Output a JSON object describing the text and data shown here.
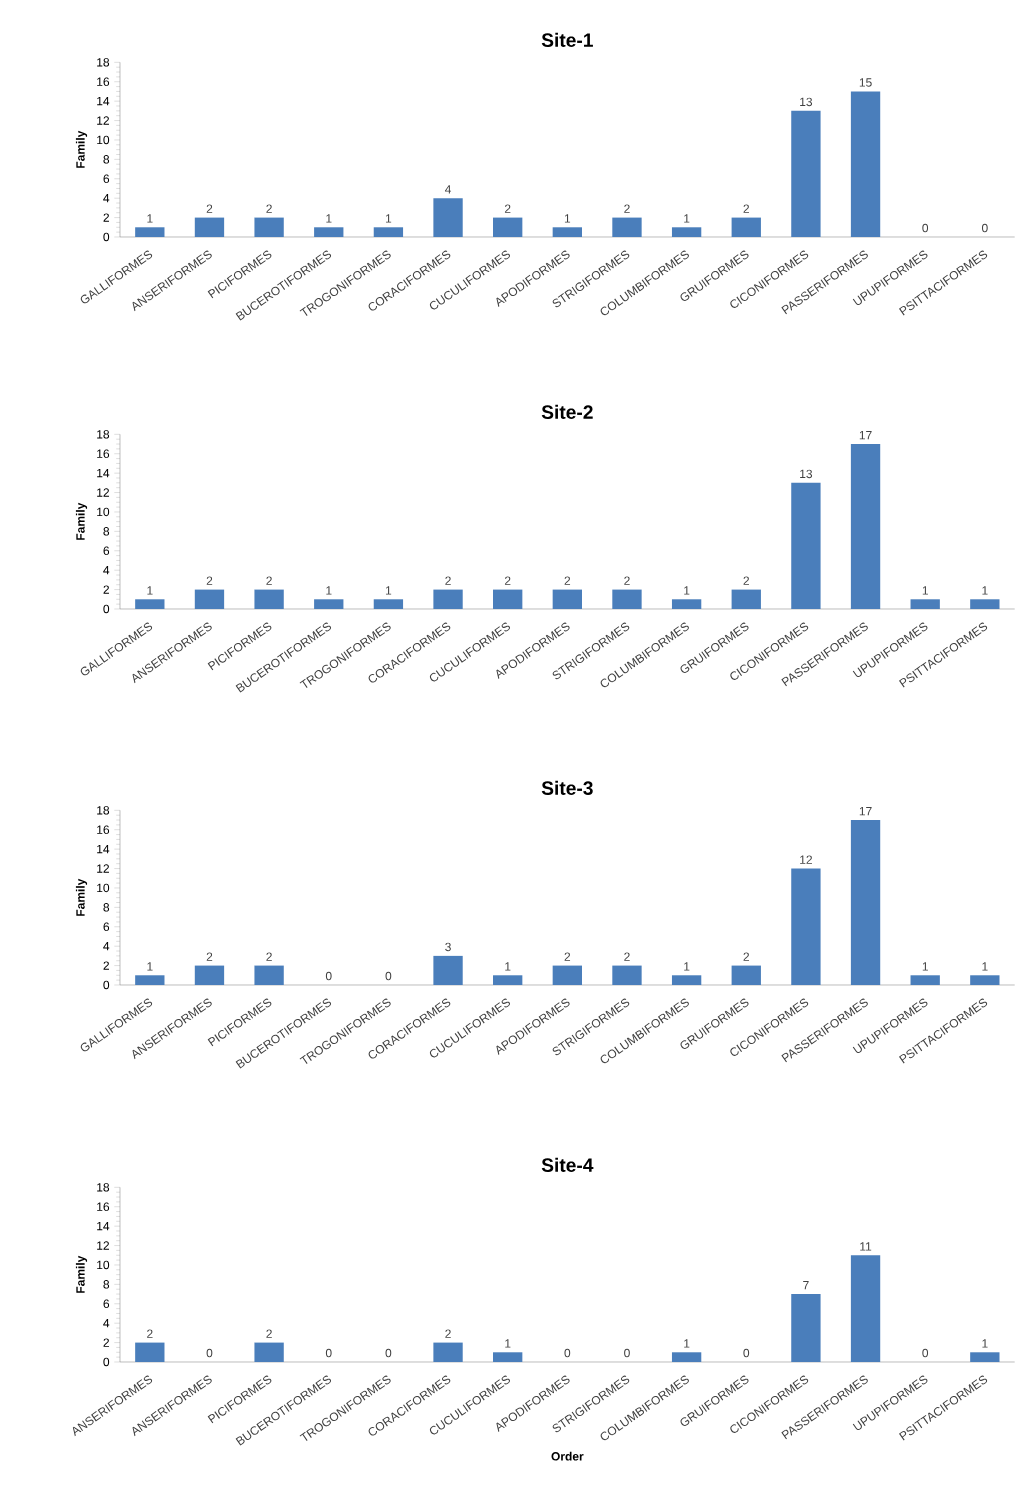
{
  "chart_data": [
    {
      "type": "bar",
      "title": "Site-1",
      "ylabel": "Family",
      "categories": [
        "GALLIFORMES",
        "ANSERIFORMES",
        "PICIFORMES",
        "BUCEROTIFORMES",
        "TROGONIFORMES",
        "CORACIFORMES",
        "CUCULIFORMES",
        "APODIFORMES",
        "STRIGIFORMES",
        "COLUMBIFORMES",
        "GRUIFORMES",
        "CICONIFORMES",
        "PASSERIFORMES",
        "UPUPIFORMES",
        "PSITTACIFORMES"
      ],
      "values": [
        1,
        2,
        2,
        1,
        1,
        4,
        2,
        1,
        2,
        1,
        2,
        13,
        15,
        0,
        0
      ],
      "color": "#4a7ebb",
      "ylim": [
        0,
        18
      ],
      "yticks": [
        0,
        2,
        4,
        6,
        8,
        10,
        12,
        14,
        16,
        18
      ],
      "data_labels": true
    },
    {
      "type": "bar",
      "title": "Site-2",
      "ylabel": "Family",
      "categories": [
        "GALLIFORMES",
        "ANSERIFORMES",
        "PICIFORMES",
        "BUCEROTIFORMES",
        "TROGONIFORMES",
        "CORACIFORMES",
        "CUCULIFORMES",
        "APODIFORMES",
        "STRIGIFORMES",
        "COLUMBIFORMES",
        "GRUIFORMES",
        "CICONIFORMES",
        "PASSERIFORMES",
        "UPUPIFORMES",
        "PSITTACIFORMES"
      ],
      "values": [
        1,
        2,
        2,
        1,
        1,
        2,
        2,
        2,
        2,
        1,
        2,
        13,
        17,
        1,
        1
      ],
      "color": "#4a7ebb",
      "ylim": [
        0,
        18
      ],
      "yticks": [
        0,
        2,
        4,
        6,
        8,
        10,
        12,
        14,
        16,
        18
      ],
      "data_labels": true
    },
    {
      "type": "bar",
      "title": "Site-3",
      "ylabel": "Family",
      "categories": [
        "GALLIFORMES",
        "ANSERIFORMES",
        "PICIFORMES",
        "BUCEROTIFORMES",
        "TROGONIFORMES",
        "CORACIFORMES",
        "CUCULIFORMES",
        "APODIFORMES",
        "STRIGIFORMES",
        "COLUMBIFORMES",
        "GRUIFORMES",
        "CICONIFORMES",
        "PASSERIFORMES",
        "UPUPIFORMES",
        "PSITTACIFORMES"
      ],
      "values": [
        1,
        2,
        2,
        0,
        0,
        3,
        1,
        2,
        2,
        1,
        2,
        12,
        17,
        1,
        1
      ],
      "color": "#4a7ebb",
      "ylim": [
        0,
        18
      ],
      "yticks": [
        0,
        2,
        4,
        6,
        8,
        10,
        12,
        14,
        16,
        18
      ],
      "data_labels": true
    },
    {
      "type": "bar",
      "title": "Site-4",
      "ylabel": "Family",
      "xlabel": "Order",
      "categories": [
        "ANSERIFORMES",
        "ANSERIFORMES",
        "PICIFORMES",
        "BUCEROTIFORMES",
        "TROGONIFORMES",
        "CORACIFORMES",
        "CUCULIFORMES",
        "APODIFORMES",
        "STRIGIFORMES",
        "COLUMBIFORMES",
        "GRUIFORMES",
        "CICONIFORMES",
        "PASSERIFORMES",
        "UPUPIFORMES",
        "PSITTACIFORMES"
      ],
      "values": [
        2,
        0,
        2,
        0,
        0,
        2,
        1,
        0,
        0,
        1,
        0,
        7,
        11,
        0,
        1
      ],
      "color": "#4a7ebb",
      "ylim": [
        0,
        18
      ],
      "yticks": [
        0,
        2,
        4,
        6,
        8,
        10,
        12,
        14,
        16,
        18
      ],
      "data_labels": true
    }
  ]
}
